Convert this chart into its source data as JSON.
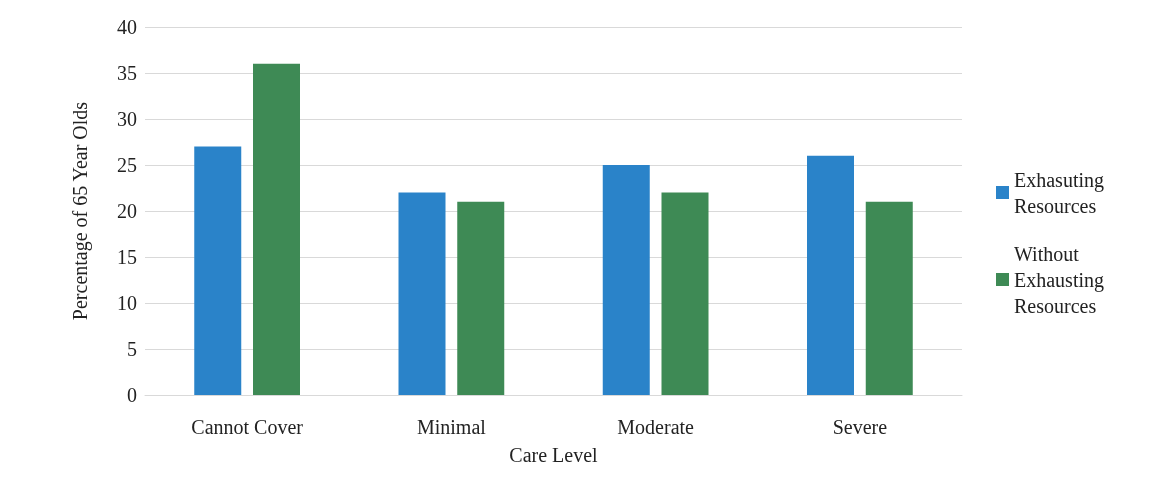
{
  "chart_data": {
    "type": "bar",
    "xlabel": "Care Level",
    "ylabel": "Percentage of 65 Year Olds",
    "categories": [
      "Cannot Cover",
      "Minimal",
      "Moderate",
      "Severe"
    ],
    "series": [
      {
        "name": "Exhasuting Resources",
        "color": "#2a83c9",
        "values": [
          27,
          22,
          25,
          26
        ]
      },
      {
        "name": "Without Exhausting Resources",
        "color": "#3e8a55",
        "values": [
          36,
          21,
          22,
          21
        ]
      }
    ],
    "ylim": [
      0,
      40
    ],
    "yticks": [
      0,
      5,
      10,
      15,
      20,
      25,
      30,
      35,
      40
    ],
    "grid": "y",
    "legend": "right"
  }
}
